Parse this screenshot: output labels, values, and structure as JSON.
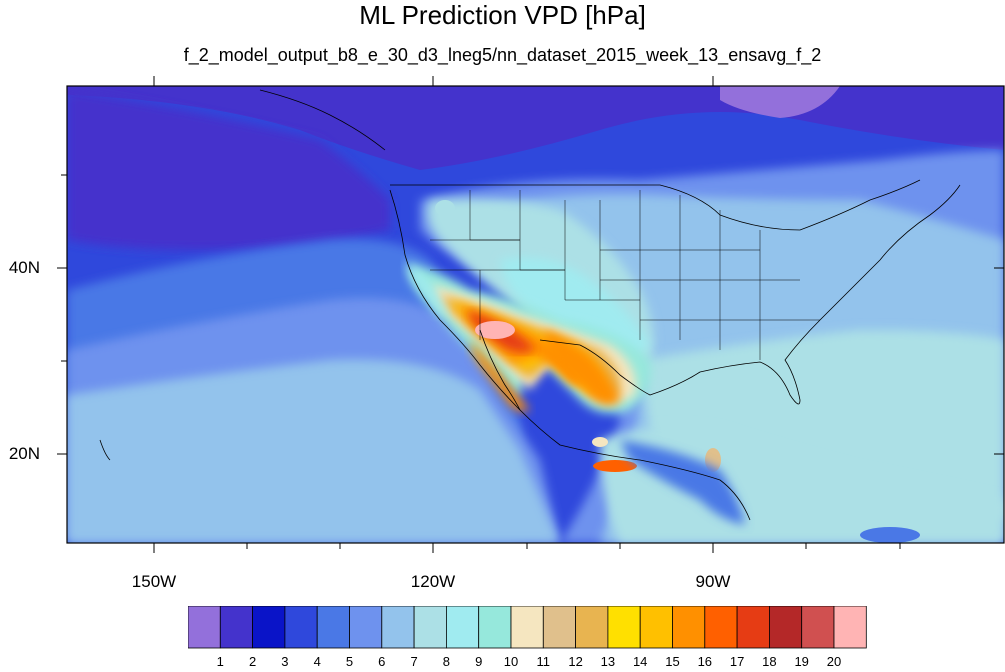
{
  "title": "ML Prediction VPD [hPa]",
  "subtitle": "f_2_model_output_b8_e_30_d3_lneg5/nn_dataset_2015_week_13_ensavg_f_2",
  "map": {
    "lon_ticks": [
      "150W",
      "120W",
      "90W"
    ],
    "lat_ticks": [
      "40N",
      "20N"
    ]
  },
  "colorbar": {
    "labels": [
      "1",
      "2",
      "3",
      "4",
      "5",
      "6",
      "7",
      "8",
      "9",
      "10",
      "11",
      "12",
      "13",
      "14",
      "15",
      "16",
      "17",
      "18",
      "19",
      "20"
    ],
    "colors": [
      "#9370db",
      "#4433cc",
      "#0a14c8",
      "#2f48dc",
      "#4a78e6",
      "#6e92ee",
      "#93c3ec",
      "#ace0e6",
      "#a0ebf0",
      "#96e8dc",
      "#f5e6c0",
      "#e0c08c",
      "#e8b450",
      "#ffe000",
      "#ffc000",
      "#ff9000",
      "#ff6000",
      "#e63c14",
      "#b42828",
      "#d05050",
      "#ffb4b4"
    ]
  }
}
